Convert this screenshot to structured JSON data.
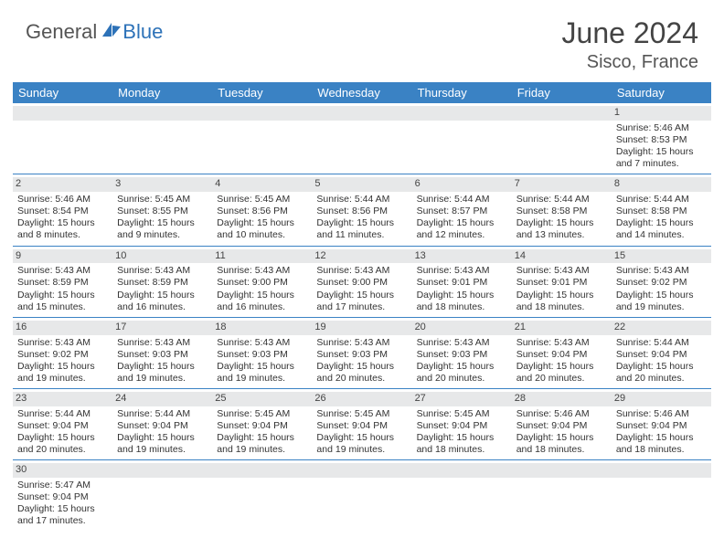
{
  "brand": {
    "part1": "General",
    "part2": "Blue"
  },
  "title": "June 2024",
  "location": "Sisco, France",
  "colors": {
    "header_bg": "#3a82c4",
    "header_fg": "#ffffff",
    "daynum_bg": "#e7e8e9",
    "border": "#3a82c4",
    "brand_accent": "#2d72b8"
  },
  "dow": [
    "Sunday",
    "Monday",
    "Tuesday",
    "Wednesday",
    "Thursday",
    "Friday",
    "Saturday"
  ],
  "weeks": [
    [
      null,
      null,
      null,
      null,
      null,
      null,
      {
        "n": "1",
        "sr": "5:46 AM",
        "ss": "8:53 PM",
        "dl": "15 hours and 7 minutes."
      }
    ],
    [
      {
        "n": "2",
        "sr": "5:46 AM",
        "ss": "8:54 PM",
        "dl": "15 hours and 8 minutes."
      },
      {
        "n": "3",
        "sr": "5:45 AM",
        "ss": "8:55 PM",
        "dl": "15 hours and 9 minutes."
      },
      {
        "n": "4",
        "sr": "5:45 AM",
        "ss": "8:56 PM",
        "dl": "15 hours and 10 minutes."
      },
      {
        "n": "5",
        "sr": "5:44 AM",
        "ss": "8:56 PM",
        "dl": "15 hours and 11 minutes."
      },
      {
        "n": "6",
        "sr": "5:44 AM",
        "ss": "8:57 PM",
        "dl": "15 hours and 12 minutes."
      },
      {
        "n": "7",
        "sr": "5:44 AM",
        "ss": "8:58 PM",
        "dl": "15 hours and 13 minutes."
      },
      {
        "n": "8",
        "sr": "5:44 AM",
        "ss": "8:58 PM",
        "dl": "15 hours and 14 minutes."
      }
    ],
    [
      {
        "n": "9",
        "sr": "5:43 AM",
        "ss": "8:59 PM",
        "dl": "15 hours and 15 minutes."
      },
      {
        "n": "10",
        "sr": "5:43 AM",
        "ss": "8:59 PM",
        "dl": "15 hours and 16 minutes."
      },
      {
        "n": "11",
        "sr": "5:43 AM",
        "ss": "9:00 PM",
        "dl": "15 hours and 16 minutes."
      },
      {
        "n": "12",
        "sr": "5:43 AM",
        "ss": "9:00 PM",
        "dl": "15 hours and 17 minutes."
      },
      {
        "n": "13",
        "sr": "5:43 AM",
        "ss": "9:01 PM",
        "dl": "15 hours and 18 minutes."
      },
      {
        "n": "14",
        "sr": "5:43 AM",
        "ss": "9:01 PM",
        "dl": "15 hours and 18 minutes."
      },
      {
        "n": "15",
        "sr": "5:43 AM",
        "ss": "9:02 PM",
        "dl": "15 hours and 19 minutes."
      }
    ],
    [
      {
        "n": "16",
        "sr": "5:43 AM",
        "ss": "9:02 PM",
        "dl": "15 hours and 19 minutes."
      },
      {
        "n": "17",
        "sr": "5:43 AM",
        "ss": "9:03 PM",
        "dl": "15 hours and 19 minutes."
      },
      {
        "n": "18",
        "sr": "5:43 AM",
        "ss": "9:03 PM",
        "dl": "15 hours and 19 minutes."
      },
      {
        "n": "19",
        "sr": "5:43 AM",
        "ss": "9:03 PM",
        "dl": "15 hours and 20 minutes."
      },
      {
        "n": "20",
        "sr": "5:43 AM",
        "ss": "9:03 PM",
        "dl": "15 hours and 20 minutes."
      },
      {
        "n": "21",
        "sr": "5:43 AM",
        "ss": "9:04 PM",
        "dl": "15 hours and 20 minutes."
      },
      {
        "n": "22",
        "sr": "5:44 AM",
        "ss": "9:04 PM",
        "dl": "15 hours and 20 minutes."
      }
    ],
    [
      {
        "n": "23",
        "sr": "5:44 AM",
        "ss": "9:04 PM",
        "dl": "15 hours and 20 minutes."
      },
      {
        "n": "24",
        "sr": "5:44 AM",
        "ss": "9:04 PM",
        "dl": "15 hours and 19 minutes."
      },
      {
        "n": "25",
        "sr": "5:45 AM",
        "ss": "9:04 PM",
        "dl": "15 hours and 19 minutes."
      },
      {
        "n": "26",
        "sr": "5:45 AM",
        "ss": "9:04 PM",
        "dl": "15 hours and 19 minutes."
      },
      {
        "n": "27",
        "sr": "5:45 AM",
        "ss": "9:04 PM",
        "dl": "15 hours and 18 minutes."
      },
      {
        "n": "28",
        "sr": "5:46 AM",
        "ss": "9:04 PM",
        "dl": "15 hours and 18 minutes."
      },
      {
        "n": "29",
        "sr": "5:46 AM",
        "ss": "9:04 PM",
        "dl": "15 hours and 18 minutes."
      }
    ],
    [
      {
        "n": "30",
        "sr": "5:47 AM",
        "ss": "9:04 PM",
        "dl": "15 hours and 17 minutes."
      },
      null,
      null,
      null,
      null,
      null,
      null
    ]
  ],
  "labels": {
    "sunrise": "Sunrise:",
    "sunset": "Sunset:",
    "daylight": "Daylight:"
  }
}
